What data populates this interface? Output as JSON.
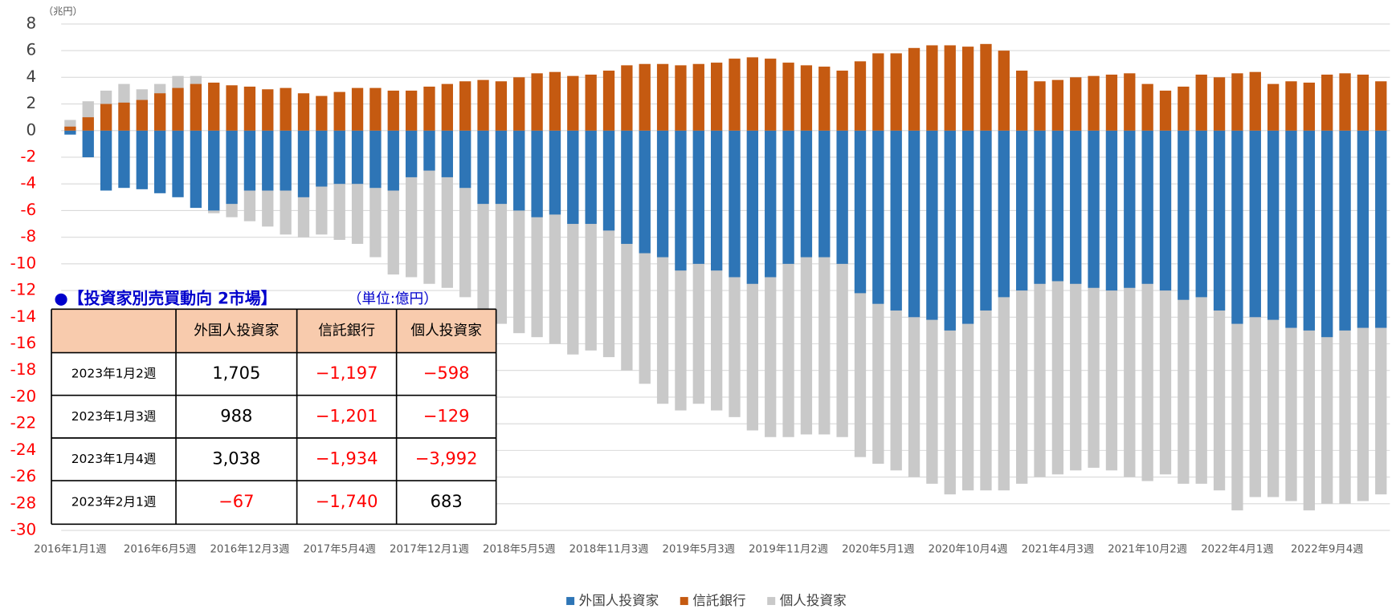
{
  "chart_data": {
    "type": "bar",
    "y_unit": "（兆円）",
    "categories": [
      "2016年1月1週",
      null,
      null,
      null,
      null,
      "2016年6月5週",
      null,
      null,
      null,
      null,
      "2016年12月3週",
      null,
      null,
      null,
      null,
      "2017年5月4週",
      null,
      null,
      null,
      null,
      "2017年12月1週",
      null,
      null,
      null,
      null,
      "2018年5月5週",
      null,
      null,
      null,
      null,
      "2018年11月3週",
      null,
      null,
      null,
      null,
      "2019年5月3週",
      null,
      null,
      null,
      null,
      "2019年11月2週",
      null,
      null,
      null,
      null,
      "2020年5月1週",
      null,
      null,
      null,
      null,
      "2020年10月4週",
      null,
      null,
      null,
      null,
      "2021年4月3週",
      null,
      null,
      null,
      null,
      "2021年10月2週",
      null,
      null,
      null,
      null,
      "2022年4月1週",
      null,
      null,
      null,
      null,
      "2022年9月4週",
      null,
      null,
      null
    ],
    "series": [
      {
        "name": "個人投資家",
        "color": "#c9c9c9",
        "values": [
          0.8,
          2.2,
          3.0,
          3.5,
          3.1,
          3.5,
          4.1,
          4.1,
          -6.2,
          -6.5,
          -6.8,
          -7.2,
          -7.8,
          -8,
          -7.8,
          -8.2,
          -8.5,
          -9.5,
          -10.8,
          -11,
          -11.5,
          -11.8,
          -12.5,
          -13.5,
          -14.5,
          -15.2,
          -15.5,
          -16,
          -16.8,
          -16.5,
          -17,
          -18,
          -19,
          -20.5,
          -21,
          -20.5,
          -21,
          -21.5,
          -22.5,
          -23,
          -23,
          -22.8,
          -22.8,
          -23,
          -24.5,
          -25,
          -25.5,
          -26,
          -26.5,
          -27.3,
          -27,
          -27,
          -27,
          -26.5,
          -26,
          -25.8,
          -25.5,
          -25.3,
          -25.5,
          -26,
          -26.3,
          -25.8,
          -26.5,
          -26.5,
          -27,
          -28.5,
          -27.5,
          -27.5,
          -27.8,
          -28.5,
          -28,
          -28,
          -27.8,
          -27.3
        ]
      },
      {
        "name": "外国人投資家",
        "color": "#2e75b6",
        "values": [
          -0.3,
          -2,
          -4.5,
          -4.3,
          -4.4,
          -4.7,
          -5,
          -5.8,
          -6,
          -5.5,
          -4.5,
          -4.5,
          -4.5,
          -5,
          -4.2,
          -4,
          -4,
          -4.3,
          -4.5,
          -3.5,
          -3,
          -3.5,
          -4.3,
          -5.5,
          -5.5,
          -6,
          -6.5,
          -6.3,
          -7,
          -7,
          -7.5,
          -8.5,
          -9.2,
          -9.5,
          -10.5,
          -10,
          -10.5,
          -11,
          -11.5,
          -11,
          -10,
          -9.5,
          -9.5,
          -10,
          -12.2,
          -13,
          -13.5,
          -14,
          -14.2,
          -15,
          -14.5,
          -13.5,
          -12.5,
          -12,
          -11.5,
          -11.3,
          -11.5,
          -11.8,
          -12,
          -11.8,
          -11.5,
          -12,
          -12.7,
          -12.5,
          -13.5,
          -14.5,
          -14,
          -14.2,
          -14.8,
          -15,
          -15.5,
          -15,
          -14.8,
          -14.8
        ]
      },
      {
        "name": "信託銀行",
        "color": "#c55a11",
        "values": [
          0.3,
          1,
          2,
          2.1,
          2.3,
          2.8,
          3.2,
          3.5,
          3.6,
          3.4,
          3.3,
          3.1,
          3.2,
          2.8,
          2.6,
          2.9,
          3.2,
          3.2,
          3.0,
          3.0,
          3.3,
          3.5,
          3.7,
          3.8,
          3.7,
          4.0,
          4.3,
          4.4,
          4.1,
          4.2,
          4.5,
          4.9,
          5.0,
          5.0,
          4.9,
          5.0,
          5.1,
          5.4,
          5.5,
          5.4,
          5.1,
          4.9,
          4.8,
          4.5,
          5.2,
          5.8,
          5.8,
          6.2,
          6.4,
          6.4,
          6.3,
          6.5,
          6.0,
          4.5,
          3.7,
          3.8,
          4.0,
          4.1,
          4.2,
          4.3,
          3.5,
          3.0,
          3.3,
          4.2,
          4.0,
          4.3,
          4.4,
          3.5,
          3.7,
          3.6,
          4.2,
          4.3,
          4.2,
          3.7
        ]
      }
    ],
    "legend_order": [
      1,
      2,
      0
    ],
    "ylim": [
      -30,
      8
    ],
    "yticks": [
      8,
      6,
      4,
      2,
      0,
      -2,
      -4,
      -6,
      -8,
      -10,
      -12,
      -14,
      -16,
      -18,
      -20,
      -22,
      -24,
      -26,
      -28,
      -30
    ],
    "grid": true,
    "negative_tick_color": "#ff0000"
  },
  "table": {
    "title": "●【投資家別売買動向 2市場】",
    "unit": "（単位:億円）",
    "header": [
      "外国人投資家",
      "信託銀行",
      "個人投資家"
    ],
    "rows": [
      [
        "2023年1月2週",
        "1,705",
        "−1,197",
        "−598"
      ],
      [
        "2023年1月3週",
        "988",
        "−1,201",
        "−129"
      ],
      [
        "2023年1月4週",
        "3,038",
        "−1,934",
        "−3,992"
      ],
      [
        "2023年2月1週",
        "−67",
        "−1,740",
        "683"
      ]
    ]
  }
}
